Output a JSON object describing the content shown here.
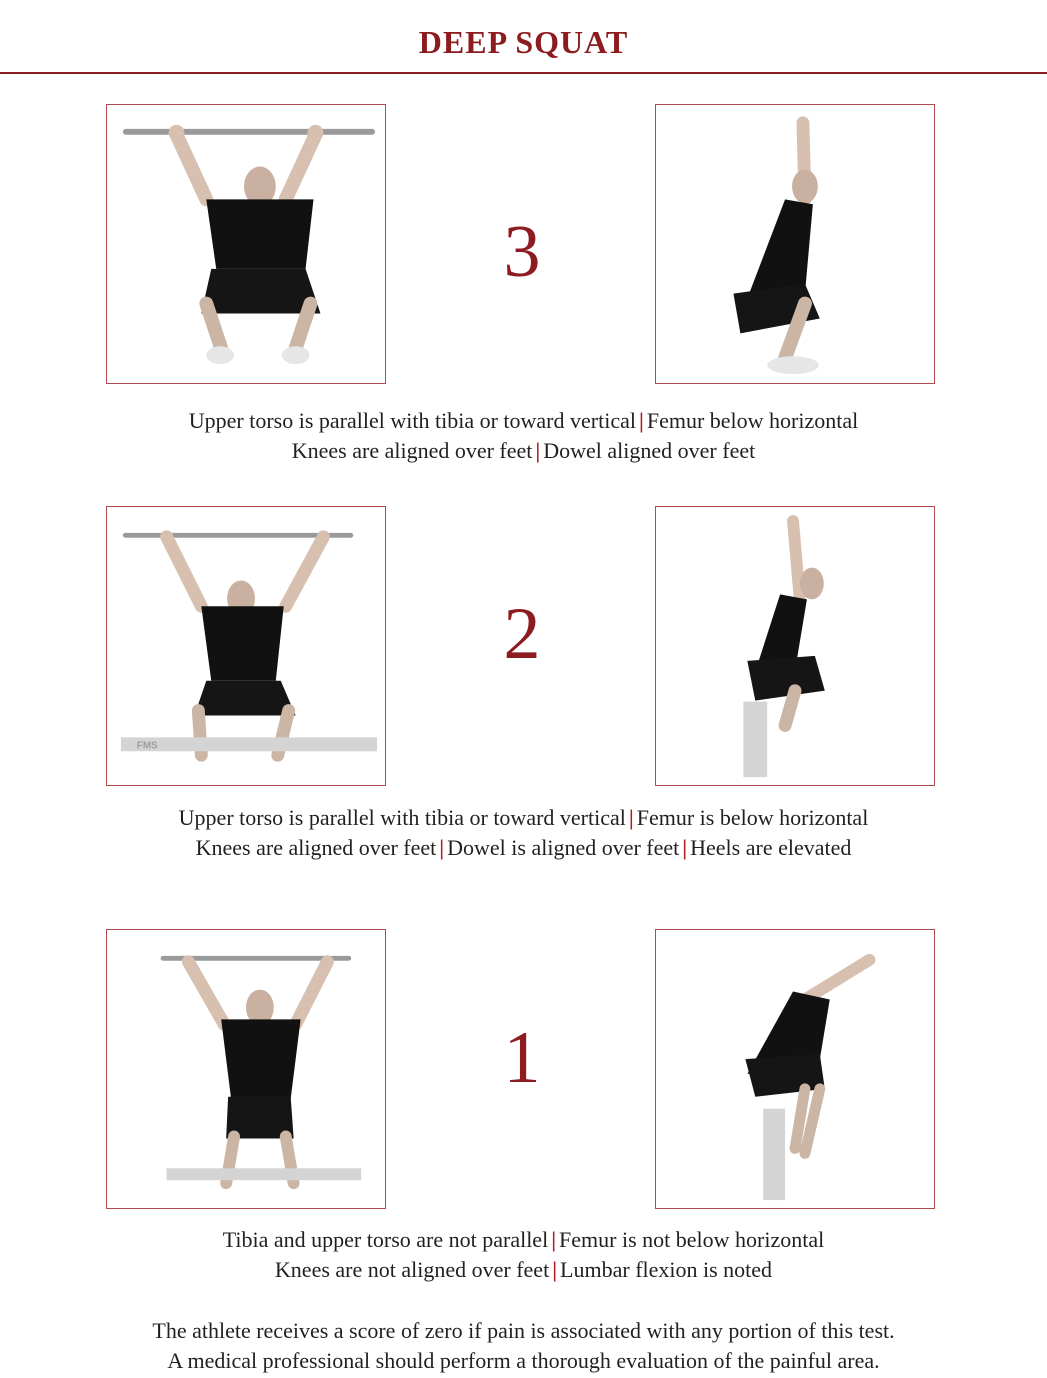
{
  "title": "DEEP SQUAT",
  "scores": [
    {
      "score": "3",
      "lines": [
        [
          "Upper torso is parallel with tibia or toward vertical",
          "Femur below horizontal"
        ],
        [
          "Knees are aligned over feet",
          "Dowel aligned over feet"
        ]
      ]
    },
    {
      "score": "2",
      "lines": [
        [
          "Upper torso is parallel with tibia or toward vertical",
          "Femur is below horizontal"
        ],
        [
          "Knees are aligned over feet",
          "Dowel is aligned over feet",
          "Heels are elevated"
        ]
      ]
    },
    {
      "score": "1",
      "lines": [
        [
          "Tibia and upper torso are not parallel",
          "Femur is not below horizontal"
        ],
        [
          "Knees are not aligned over feet",
          "Lumbar flexion is noted"
        ]
      ]
    }
  ],
  "board_label": "FMS",
  "note": [
    "The athlete receives a score of zero if pain is associated with any portion of this test.",
    "A medical professional should perform a thorough evaluation of the painful area."
  ],
  "colors": {
    "accent": "#8c1c20",
    "separator": "#b01e24",
    "frame": "#b24a4d"
  }
}
